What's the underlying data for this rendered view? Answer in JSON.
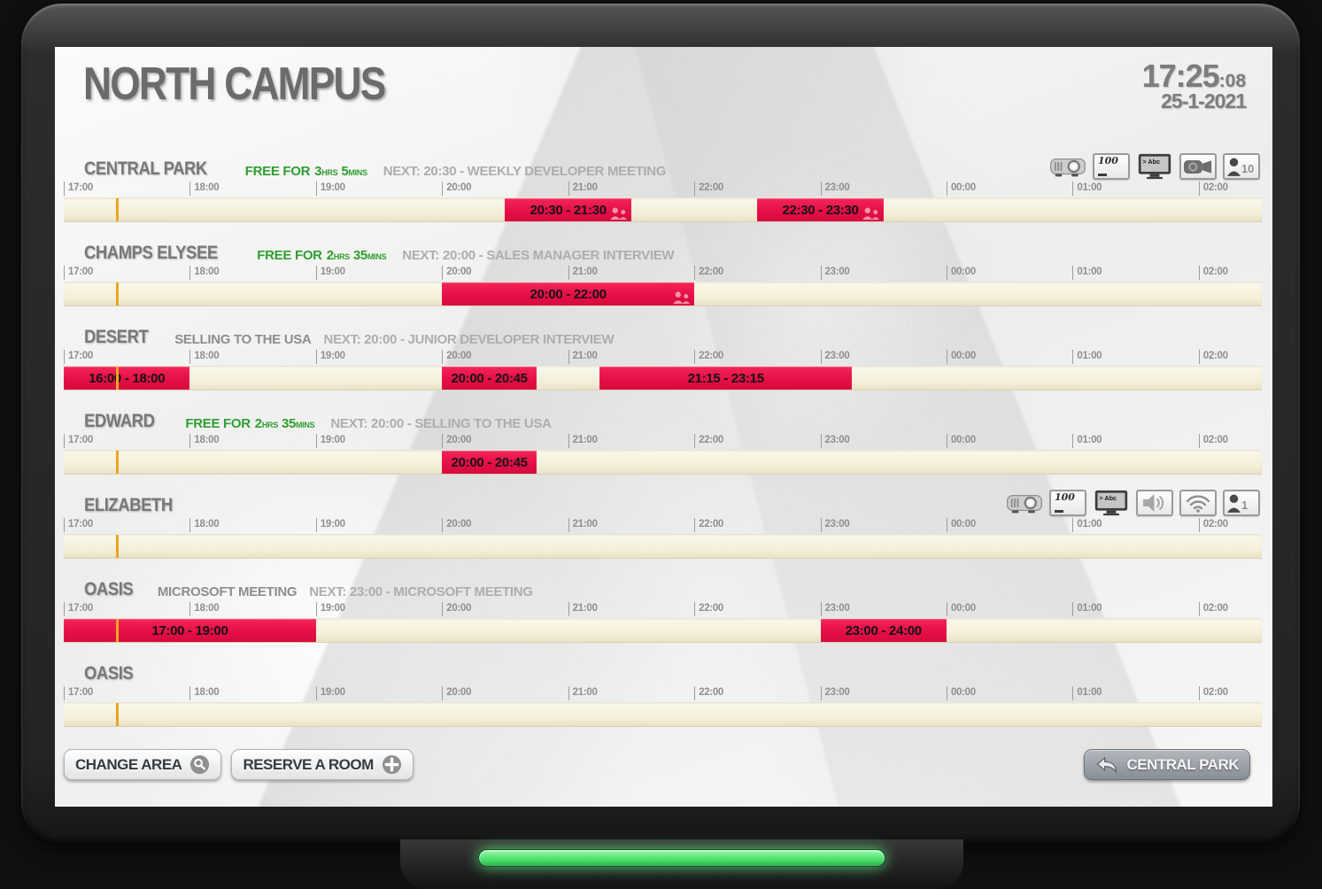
{
  "header": {
    "title": "NORTH CAMPUS",
    "time": "17:25",
    "seconds": ":08",
    "date": "25-1-2021"
  },
  "timeline": {
    "start": "17:00",
    "end": "02:30",
    "now": "17:25",
    "hours": [
      "17:00",
      "18:00",
      "19:00",
      "20:00",
      "21:00",
      "22:00",
      "23:00",
      "00:00",
      "01:00",
      "02:00"
    ],
    "colors": {
      "booking_red": "#e30e45",
      "track_cream": "#f4eed8",
      "now_marker_orange": "#eda61f",
      "free_green": "#2f9e33",
      "led_green": "#44dd66"
    }
  },
  "rooms": [
    {
      "name": "CENTRAL PARK",
      "status": {
        "free_prefix": "FREE FOR",
        "free_hours": "3",
        "free_hours_unit": "HRS",
        "free_mins": "5",
        "free_mins_unit": "MINS",
        "current": "",
        "next": "NEXT: 20:30 - WEEKLY DEVELOPER MEETING"
      },
      "amenities": [
        {
          "type": "projector-icon"
        },
        {
          "type": "whiteboard-icon",
          "label": "100"
        },
        {
          "type": "tv-icon",
          "label": "> Abc"
        },
        {
          "type": "camera-icon"
        },
        {
          "type": "capacity-icon",
          "label": "10"
        }
      ],
      "bookings": [
        {
          "start": "20:30",
          "end": "21:30",
          "label": "20:30 - 21:30",
          "attendees_icon": true
        },
        {
          "start": "22:30",
          "end": "23:30",
          "label": "22:30 - 23:30",
          "attendees_icon": true
        }
      ]
    },
    {
      "name": "CHAMPS ELYSEE",
      "status": {
        "free_prefix": "FREE FOR",
        "free_hours": "2",
        "free_hours_unit": "HRS",
        "free_mins": "35",
        "free_mins_unit": "MINS",
        "current": "",
        "next": "NEXT: 20:00 - SALES MANAGER INTERVIEW"
      },
      "amenities": [],
      "bookings": [
        {
          "start": "20:00",
          "end": "22:00",
          "label": "20:00 - 22:00",
          "attendees_icon": true
        }
      ]
    },
    {
      "name": "DESERT",
      "status": {
        "free_prefix": "",
        "free_hours": "",
        "free_hours_unit": "",
        "free_mins": "",
        "free_mins_unit": "",
        "current": "SELLING TO THE USA",
        "next": "NEXT: 20:00 - JUNIOR DEVELOPER INTERVIEW"
      },
      "amenities": [],
      "bookings": [
        {
          "start": "16:00",
          "end": "18:00",
          "label": "16:00 - 18:00",
          "attendees_icon": false
        },
        {
          "start": "20:00",
          "end": "20:45",
          "label": "20:00 - 20:45",
          "attendees_icon": false
        },
        {
          "start": "21:15",
          "end": "23:15",
          "label": "21:15 - 23:15",
          "attendees_icon": false
        }
      ]
    },
    {
      "name": "EDWARD",
      "status": {
        "free_prefix": "FREE FOR",
        "free_hours": "2",
        "free_hours_unit": "HRS",
        "free_mins": "35",
        "free_mins_unit": "MINS",
        "current": "",
        "next": "NEXT: 20:00 - SELLING TO THE USA"
      },
      "amenities": [],
      "bookings": [
        {
          "start": "20:00",
          "end": "20:45",
          "label": "20:00 - 20:45",
          "attendees_icon": false
        }
      ]
    },
    {
      "name": "ELIZABETH",
      "status": {
        "free_prefix": "",
        "free_hours": "",
        "free_hours_unit": "",
        "free_mins": "",
        "free_mins_unit": "",
        "current": "",
        "next": ""
      },
      "amenities": [
        {
          "type": "projector-icon"
        },
        {
          "type": "whiteboard-icon",
          "label": "100"
        },
        {
          "type": "tv-icon",
          "label": "> Abc"
        },
        {
          "type": "speaker-icon"
        },
        {
          "type": "wifi-icon"
        },
        {
          "type": "capacity-icon",
          "label": "1"
        }
      ],
      "bookings": []
    },
    {
      "name": "OASIS",
      "status": {
        "free_prefix": "",
        "free_hours": "",
        "free_hours_unit": "",
        "free_mins": "",
        "free_mins_unit": "",
        "current": "MICROSOFT MEETING",
        "next": "NEXT: 23:00 - MICROSOFT MEETING"
      },
      "amenities": [],
      "bookings": [
        {
          "start": "17:00",
          "end": "19:00",
          "label": "17:00 - 19:00",
          "attendees_icon": false
        },
        {
          "start": "23:00",
          "end": "24:00",
          "label": "23:00 - 24:00",
          "attendees_icon": false
        }
      ]
    },
    {
      "name": "OASIS",
      "status": {
        "free_prefix": "",
        "free_hours": "",
        "free_hours_unit": "",
        "free_mins": "",
        "free_mins_unit": "",
        "current": "",
        "next": ""
      },
      "amenities": [],
      "bookings": []
    }
  ],
  "footer": {
    "change_area_label": "CHANGE AREA",
    "reserve_room_label": "RESERVE A ROOM",
    "back_room_label": "CENTRAL PARK"
  }
}
